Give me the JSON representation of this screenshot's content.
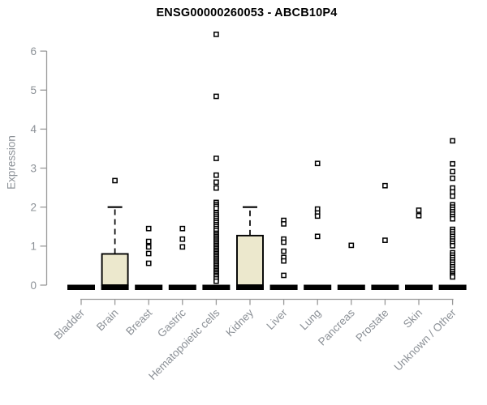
{
  "header": {
    "title": "ENSG00000260053 - ABCB10P4"
  },
  "chart_data": {
    "type": "boxplot",
    "title": "ENSG00000260053 - ABCB10P4",
    "xlabel": "",
    "ylabel": "Expression",
    "ylim": [
      0,
      6.6
    ],
    "yticks": [
      0,
      1,
      2,
      3,
      4,
      5,
      6
    ],
    "grid": false,
    "legend": "none",
    "colors": {
      "box_fill": "#ece8cd",
      "box_stroke": "#000000",
      "median_bar": "#000000",
      "outlier_stroke": "#000000",
      "outlier_fill": "#ffffff",
      "axis_line": "#9a9a9a",
      "tick_label": "#8b9096",
      "title_text": "#000000",
      "background": "#ffffff"
    },
    "categories": [
      "Bladder",
      "Brain",
      "Breast",
      "Gastric",
      "Hematopoietic cells",
      "Kidney",
      "Liver",
      "Lung",
      "Pancreas",
      "Prostate",
      "Skin",
      "Unknown / Other"
    ],
    "series": [
      {
        "category": "Bladder",
        "median": 0,
        "q1": 0,
        "q3": 0,
        "whisker_low": 0,
        "whisker_high": 0,
        "outliers": []
      },
      {
        "category": "Brain",
        "median": 0,
        "q1": 0,
        "q3": 0.8,
        "whisker_low": 0,
        "whisker_high": 2.0,
        "outliers": [
          2.68
        ]
      },
      {
        "category": "Breast",
        "median": 0,
        "q1": 0,
        "q3": 0,
        "whisker_low": 0,
        "whisker_high": 0,
        "outliers": [
          1.45,
          1.12,
          0.98,
          0.81,
          0.56
        ]
      },
      {
        "category": "Gastric",
        "median": 0,
        "q1": 0,
        "q3": 0,
        "whisker_low": 0,
        "whisker_high": 0,
        "outliers": [
          1.45,
          1.18,
          0.98
        ]
      },
      {
        "category": "Hematopoietic cells",
        "median": 0,
        "q1": 0,
        "q3": 0,
        "whisker_low": 0,
        "whisker_high": 0,
        "outliers": [
          6.43,
          4.84,
          3.25,
          2.82,
          2.64,
          2.49,
          2.12,
          2.07,
          2.02,
          1.97,
          1.85,
          1.8,
          1.75,
          1.7,
          1.65,
          1.6,
          1.55,
          1.5,
          1.45,
          1.4,
          1.33,
          1.29,
          1.25,
          1.21,
          1.17,
          1.13,
          1.09,
          1.05,
          1.01,
          0.97,
          0.93,
          0.89,
          0.85,
          0.81,
          0.77,
          0.73,
          0.69,
          0.65,
          0.61,
          0.57,
          0.53,
          0.49,
          0.45,
          0.41,
          0.37,
          0.33,
          0.29,
          0.25,
          0.21,
          0.16,
          0.1
        ]
      },
      {
        "category": "Kidney",
        "median": 0,
        "q1": 0,
        "q3": 1.27,
        "whisker_low": 0,
        "whisker_high": 2.0,
        "outliers": []
      },
      {
        "category": "Liver",
        "median": 0,
        "q1": 0,
        "q3": 0,
        "whisker_low": 0,
        "whisker_high": 0,
        "outliers": [
          1.66,
          1.57,
          1.18,
          1.1,
          0.87,
          0.71,
          0.62,
          0.25
        ]
      },
      {
        "category": "Lung",
        "median": 0,
        "q1": 0,
        "q3": 0,
        "whisker_low": 0,
        "whisker_high": 0,
        "outliers": [
          3.12,
          1.95,
          1.85,
          1.77,
          1.25
        ]
      },
      {
        "category": "Pancreas",
        "median": 0,
        "q1": 0,
        "q3": 0,
        "whisker_low": 0,
        "whisker_high": 0,
        "outliers": [
          1.02
        ]
      },
      {
        "category": "Prostate",
        "median": 0,
        "q1": 0,
        "q3": 0,
        "whisker_low": 0,
        "whisker_high": 0,
        "outliers": [
          2.55,
          1.15
        ]
      },
      {
        "category": "Skin",
        "median": 0,
        "q1": 0,
        "q3": 0,
        "whisker_low": 0,
        "whisker_high": 0,
        "outliers": [
          1.92,
          1.78
        ]
      },
      {
        "category": "Unknown / Other",
        "median": 0,
        "q1": 0,
        "q3": 0,
        "whisker_low": 0,
        "whisker_high": 0,
        "outliers": [
          3.7,
          3.11,
          2.91,
          2.74,
          2.49,
          2.39,
          2.28,
          2.06,
          2.0,
          1.94,
          1.88,
          1.82,
          1.76,
          1.7,
          1.43,
          1.37,
          1.31,
          1.25,
          1.19,
          1.13,
          1.07,
          1.01,
          0.83,
          0.77,
          0.71,
          0.65,
          0.59,
          0.53,
          0.47,
          0.41,
          0.35,
          0.29,
          0.25,
          0.21
        ]
      }
    ]
  }
}
